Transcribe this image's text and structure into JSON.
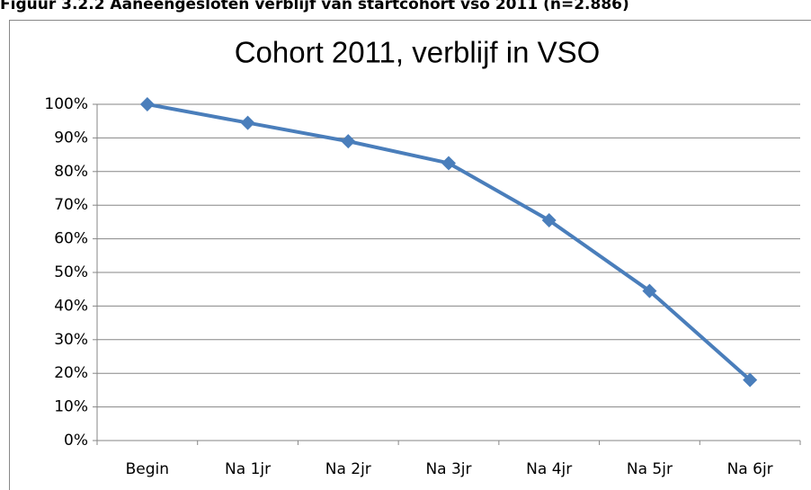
{
  "caption": "Figuur 3.2.2 Aaneengesloten verblijf van startcohort vso 2011 (n=2.886)",
  "chart_data": {
    "type": "line",
    "title": "Cohort 2011, verblijf in VSO",
    "categories": [
      "Begin",
      "Na 1jr",
      "Na 2jr",
      "Na 3jr",
      "Na 4jr",
      "Na 5jr",
      "Na 6jr"
    ],
    "series": [
      {
        "name": "Cohort 2011",
        "color": "#4a7ebb",
        "values": [
          100,
          94.5,
          89,
          82.5,
          65.5,
          44.5,
          18
        ]
      }
    ],
    "ylim": [
      0,
      100
    ],
    "yticks": [
      {
        "value": 0,
        "label": "0%"
      },
      {
        "value": 10,
        "label": "10%"
      },
      {
        "value": 20,
        "label": "20%"
      },
      {
        "value": 30,
        "label": "30%"
      },
      {
        "value": 40,
        "label": "40%"
      },
      {
        "value": 50,
        "label": "50%"
      },
      {
        "value": 60,
        "label": "60%"
      },
      {
        "value": 70,
        "label": "70%"
      },
      {
        "value": 80,
        "label": "80%"
      },
      {
        "value": 90,
        "label": "90%"
      },
      {
        "value": 100,
        "label": "100%"
      }
    ],
    "grid": true
  }
}
